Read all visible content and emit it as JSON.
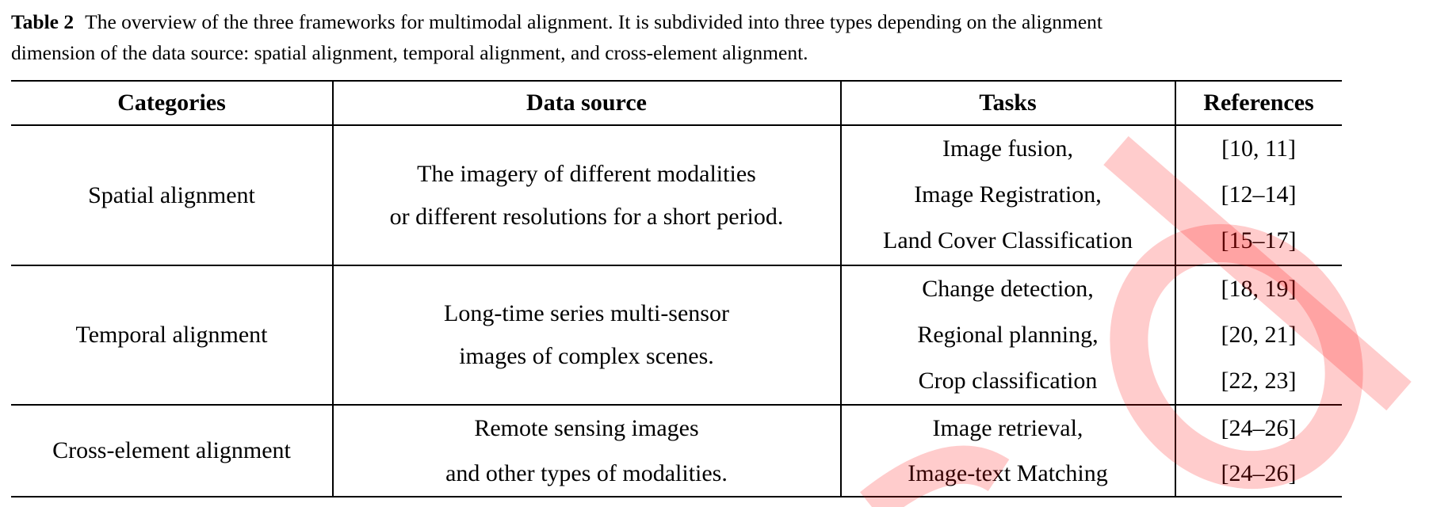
{
  "caption": {
    "label": "Table 2",
    "line1": "The overview of the three frameworks for multimodal alignment.  It is subdivided into three types depending on the alignment",
    "line2": "dimension of the data source: spatial alignment, temporal alignment, and cross-element alignment."
  },
  "table": {
    "headers": [
      "Categories",
      "Data source",
      "Tasks",
      "References"
    ],
    "groups": [
      {
        "category": "Spatial alignment",
        "source": [
          "The imagery of different modalities",
          "or different resolutions for a short period."
        ],
        "tasks": [
          "Image fusion,",
          "Image Registration,",
          "Land Cover Classification"
        ],
        "refs": [
          "[10, 11]",
          "[12–14]",
          "[15–17]"
        ]
      },
      {
        "category": "Temporal alignment",
        "source": [
          "Long-time series multi-sensor",
          "images of complex scenes."
        ],
        "tasks": [
          "Change detection,",
          "Regional planning,",
          "Crop classification"
        ],
        "refs": [
          "[18, 19]",
          "[20, 21]",
          "[22, 23]"
        ]
      },
      {
        "category": "Cross-element alignment",
        "source": [
          "Remote sensing images",
          "and other types of modalities."
        ],
        "tasks": [
          "Image retrieval,",
          "Image-text Matching"
        ],
        "refs": [
          "[24–26]",
          "[24–26]"
        ]
      }
    ]
  },
  "watermark": {
    "color": "#ff0000",
    "opacity": 0.2
  }
}
